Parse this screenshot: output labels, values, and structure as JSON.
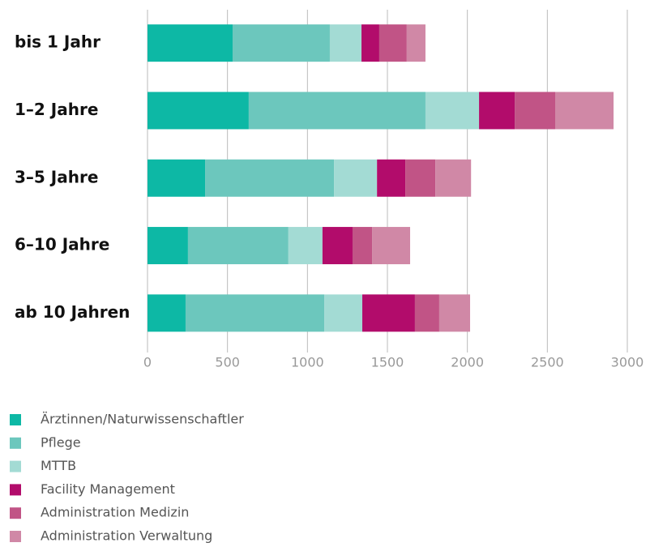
{
  "chart_data": {
    "type": "bar",
    "orientation": "horizontal",
    "stacked": true,
    "categories": [
      "bis 1 Jahr",
      "1–2 Jahre",
      "3–5 Jahre",
      "6–10 Jahre",
      "ab 10 Jahren"
    ],
    "series": [
      {
        "name": "Ärztinnen/Naturwissenschaftler",
        "color": "#0db8a5",
        "values": [
          532,
          633,
          360,
          253,
          238
        ]
      },
      {
        "name": "Pflege",
        "color": "#6cc7bd",
        "values": [
          608,
          1105,
          806,
          628,
          867
        ]
      },
      {
        "name": "MTTB",
        "color": "#a3dbd4",
        "values": [
          198,
          335,
          269,
          213,
          238
        ]
      },
      {
        "name": "Facility Management",
        "color": "#b20c6b",
        "values": [
          111,
          223,
          177,
          188,
          329
        ]
      },
      {
        "name": "Administration Medizin",
        "color": "#c15486",
        "values": [
          172,
          253,
          188,
          122,
          152
        ]
      },
      {
        "name": "Administration Verwaltung",
        "color": "#d088a6",
        "values": [
          117,
          365,
          223,
          238,
          193
        ]
      }
    ],
    "xlim": [
      0,
      3000
    ],
    "xticks": [
      0,
      500,
      1000,
      1500,
      2000,
      2500,
      3000
    ],
    "grid": true,
    "legend": "bottom"
  }
}
